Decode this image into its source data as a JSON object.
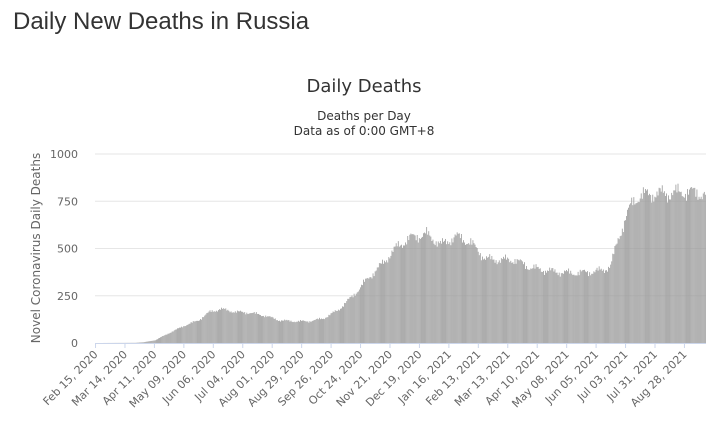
{
  "page": {
    "heading": "Daily New Deaths in Russia"
  },
  "colors": {
    "bar": "#999999",
    "grid": "#e6e6e6",
    "axis": "#ccd6eb",
    "text": "#333333"
  },
  "chart_data": {
    "type": "bar",
    "title": "Daily Deaths",
    "subtitle_line1": "Deaths per Day",
    "subtitle_line2": "Data as of 0:00 GMT+8",
    "ylabel": "Novel Coronavirus Daily Deaths",
    "xlabel": "",
    "ylim": [
      0,
      1000
    ],
    "yticks": [
      0,
      250,
      500,
      750,
      1000
    ],
    "grid": true,
    "legend": "none",
    "x_start": "2020-02-15",
    "x_end": "2021-09-17",
    "xtick_labels": [
      "Feb 15, 2020",
      "Mar 14, 2020",
      "Apr 11, 2020",
      "May 09, 2020",
      "Jun 06, 2020",
      "Jul 04, 2020",
      "Aug 01, 2020",
      "Aug 29, 2020",
      "Sep 26, 2020",
      "Oct 24, 2020",
      "Nov 21, 2020",
      "Dec 19, 2020",
      "Jan 16, 2021",
      "Feb 13, 2021",
      "Mar 13, 2021",
      "Apr 10, 2021",
      "May 08, 2021",
      "Jun 05, 2021",
      "Jul 03, 2021",
      "Jul 31, 2021",
      "Aug 28, 2021"
    ],
    "series": [
      {
        "trend": [
          {
            "date": "2020-02-15",
            "value": 0
          },
          {
            "date": "2020-03-24",
            "value": 1
          },
          {
            "date": "2020-04-01",
            "value": 4
          },
          {
            "date": "2020-04-12",
            "value": 15
          },
          {
            "date": "2020-04-26",
            "value": 55
          },
          {
            "date": "2020-05-09",
            "value": 90
          },
          {
            "date": "2020-05-23",
            "value": 120
          },
          {
            "date": "2020-06-03",
            "value": 165
          },
          {
            "date": "2020-06-13",
            "value": 180
          },
          {
            "date": "2020-06-27",
            "value": 165
          },
          {
            "date": "2020-07-11",
            "value": 160
          },
          {
            "date": "2020-07-25",
            "value": 145
          },
          {
            "date": "2020-08-08",
            "value": 120
          },
          {
            "date": "2020-08-22",
            "value": 115
          },
          {
            "date": "2020-09-05",
            "value": 115
          },
          {
            "date": "2020-09-19",
            "value": 130
          },
          {
            "date": "2020-10-03",
            "value": 175
          },
          {
            "date": "2020-10-17",
            "value": 250
          },
          {
            "date": "2020-10-31",
            "value": 340
          },
          {
            "date": "2020-11-14",
            "value": 420
          },
          {
            "date": "2020-11-28",
            "value": 510
          },
          {
            "date": "2020-12-12",
            "value": 560
          },
          {
            "date": "2020-12-26",
            "value": 575
          },
          {
            "date": "2021-01-09",
            "value": 520
          },
          {
            "date": "2021-01-23",
            "value": 565
          },
          {
            "date": "2021-02-06",
            "value": 530
          },
          {
            "date": "2021-02-20",
            "value": 445
          },
          {
            "date": "2021-03-06",
            "value": 440
          },
          {
            "date": "2021-03-20",
            "value": 440
          },
          {
            "date": "2021-04-03",
            "value": 400
          },
          {
            "date": "2021-04-17",
            "value": 385
          },
          {
            "date": "2021-05-01",
            "value": 375
          },
          {
            "date": "2021-05-15",
            "value": 370
          },
          {
            "date": "2021-05-29",
            "value": 375
          },
          {
            "date": "2021-06-12",
            "value": 385
          },
          {
            "date": "2021-06-19",
            "value": 410
          },
          {
            "date": "2021-06-26",
            "value": 545
          },
          {
            "date": "2021-07-03",
            "value": 660
          },
          {
            "date": "2021-07-10",
            "value": 745
          },
          {
            "date": "2021-07-17",
            "value": 780
          },
          {
            "date": "2021-07-31",
            "value": 790
          },
          {
            "date": "2021-08-14",
            "value": 790
          },
          {
            "date": "2021-08-28",
            "value": 800
          },
          {
            "date": "2021-09-17",
            "value": 790
          }
        ]
      }
    ]
  }
}
